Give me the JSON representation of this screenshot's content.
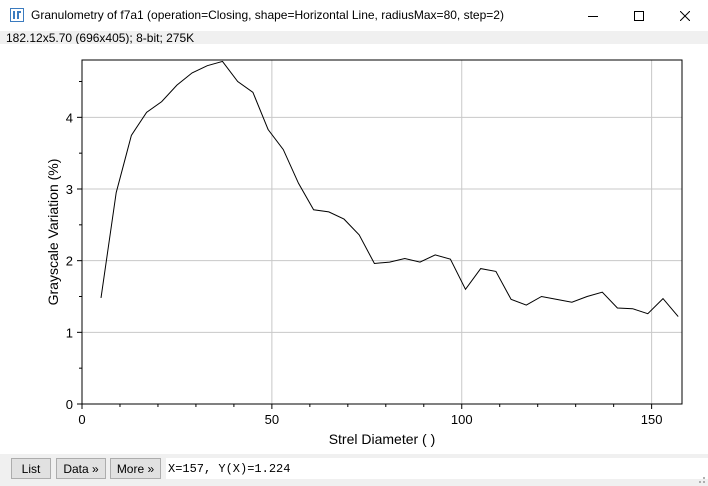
{
  "window": {
    "title": "Granulometry of f7a1 (operation=Closing, shape=Horizontal Line, radiusMax=80, step=2)",
    "info": "182.12x5.70   (696x405); 8-bit; 275K",
    "icons": {
      "app": "imagej-icon",
      "minimize": "minimize-icon",
      "maximize": "maximize-icon",
      "close": "close-icon"
    }
  },
  "buttons": {
    "list": "List",
    "data": "Data »",
    "more": "More »"
  },
  "status": {
    "coords": "X=157, Y(X)=1.224"
  },
  "chart_data": {
    "type": "line",
    "xlabel": "Strel Diameter ( )",
    "ylabel": "Grayscale Variation (%)",
    "xlim": [
      0,
      158
    ],
    "ylim": [
      0,
      4.8
    ],
    "xticks": [
      "0",
      "50",
      "100",
      "150"
    ],
    "yticks": [
      "0",
      "1",
      "2",
      "3",
      "4"
    ],
    "grid": true,
    "color": "#000000",
    "x": [
      5,
      9,
      13,
      17,
      21,
      25,
      29,
      33,
      37,
      41,
      45,
      49,
      53,
      57,
      61,
      65,
      69,
      73,
      77,
      81,
      85,
      89,
      93,
      97,
      101,
      105,
      109,
      113,
      117,
      121,
      125,
      129,
      133,
      137,
      141,
      145,
      149,
      153,
      157
    ],
    "y": [
      1.48,
      2.95,
      3.75,
      4.07,
      4.22,
      4.45,
      4.62,
      4.72,
      4.78,
      4.5,
      4.35,
      3.83,
      3.55,
      3.08,
      2.71,
      2.68,
      2.58,
      2.36,
      1.96,
      1.98,
      2.03,
      1.98,
      2.08,
      2.02,
      1.6,
      1.89,
      1.85,
      1.46,
      1.38,
      1.5,
      1.46,
      1.42,
      1.5,
      1.56,
      1.34,
      1.33,
      1.26,
      1.47,
      1.22
    ]
  }
}
